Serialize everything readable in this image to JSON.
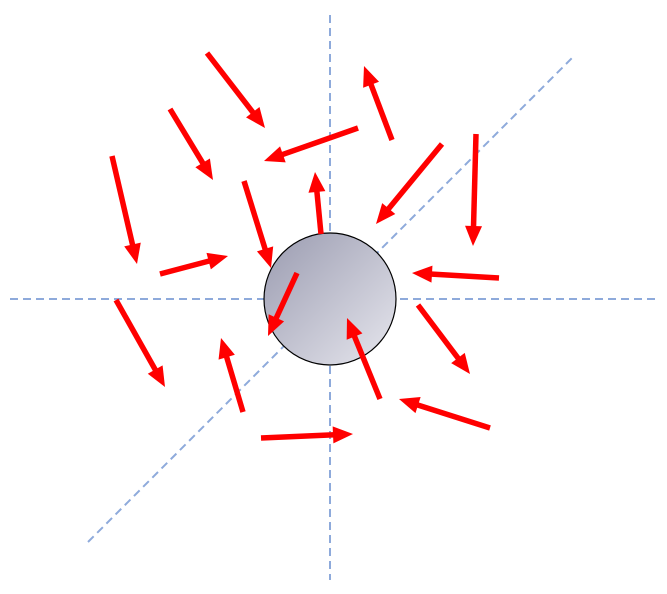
{
  "diagram": {
    "background": "#ffffff",
    "axis_color": "#8eaadb",
    "arrow_color": "#ff0000",
    "sphere": {
      "fill_light": "#e7e7ee",
      "fill_dark": "#9a9bb0",
      "stroke": "#000000"
    },
    "axes": [
      {
        "name": "vertical-axis"
      },
      {
        "name": "horizontal-axis"
      },
      {
        "name": "diagonal-axis"
      }
    ],
    "arrows": [
      {
        "name": "arrow-1"
      },
      {
        "name": "arrow-2"
      },
      {
        "name": "arrow-3"
      },
      {
        "name": "arrow-4"
      },
      {
        "name": "arrow-5"
      },
      {
        "name": "arrow-6"
      },
      {
        "name": "arrow-7"
      },
      {
        "name": "arrow-8"
      },
      {
        "name": "arrow-9"
      },
      {
        "name": "arrow-10"
      },
      {
        "name": "arrow-11"
      },
      {
        "name": "arrow-12"
      },
      {
        "name": "arrow-13"
      },
      {
        "name": "arrow-14"
      },
      {
        "name": "arrow-15"
      },
      {
        "name": "arrow-16"
      },
      {
        "name": "arrow-17"
      },
      {
        "name": "arrow-18"
      },
      {
        "name": "arrow-19"
      },
      {
        "name": "arrow-20"
      }
    ]
  }
}
